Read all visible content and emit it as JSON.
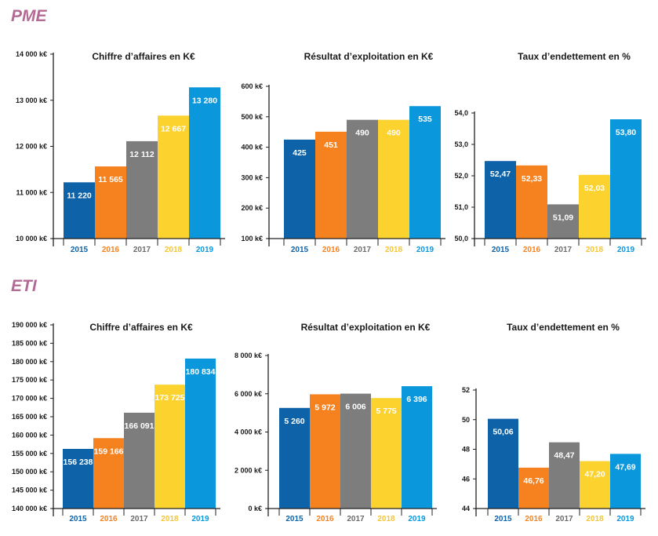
{
  "sections": [
    {
      "name": "PME",
      "color": "#b36b96"
    },
    {
      "name": "ETI",
      "color": "#b36b96"
    }
  ],
  "colors": {
    "2015": "#0e63a8",
    "2016": "#f5821f",
    "2017": "#7d7d7d",
    "2018": "#fcd22e",
    "2019": "#0a97dc"
  },
  "chart_data": [
    {
      "section": "PME",
      "type": "bar",
      "title": "Chiffre d’affaires en K€",
      "categories": [
        "2015",
        "2016",
        "2017",
        "2018",
        "2019"
      ],
      "values": [
        11220,
        11565,
        12112,
        12667,
        13280
      ],
      "value_labels": [
        "11 220",
        "11 565",
        "12 112",
        "12 667",
        "13 280"
      ],
      "ylim": [
        10000,
        14000
      ],
      "yticks": [
        10000,
        11000,
        12000,
        13000,
        14000
      ],
      "ytick_labels": [
        "10 000 k€",
        "11 000 k€",
        "12 000 k€",
        "13 000 k€",
        "14 000 k€"
      ]
    },
    {
      "section": "PME",
      "type": "bar",
      "title": "Résultat d’exploitation en K€",
      "categories": [
        "2015",
        "2016",
        "2017",
        "2018",
        "2019"
      ],
      "values": [
        425,
        451,
        490,
        490,
        535
      ],
      "value_labels": [
        "425",
        "451",
        "490",
        "490",
        "535"
      ],
      "ylim": [
        100,
        600
      ],
      "yticks": [
        100,
        200,
        300,
        400,
        500,
        600
      ],
      "ytick_labels": [
        "100 k€",
        "200 k€",
        "300 k€",
        "400 k€",
        "500 k€",
        "600 k€"
      ]
    },
    {
      "section": "PME",
      "type": "bar",
      "title": "Taux d’endettement en %",
      "categories": [
        "2015",
        "2016",
        "2017",
        "2018",
        "2019"
      ],
      "values": [
        52.47,
        52.33,
        51.09,
        52.03,
        53.8
      ],
      "value_labels": [
        "52,47",
        "52,33",
        "51,09",
        "52,03",
        "53,80"
      ],
      "ylim": [
        50,
        54
      ],
      "yticks": [
        50,
        51,
        52,
        53,
        54
      ],
      "ytick_labels": [
        "50,0",
        "51,0",
        "52,0",
        "53,0",
        "54,0"
      ]
    },
    {
      "section": "ETI",
      "type": "bar",
      "title": "Chiffre d’affaires en K€",
      "categories": [
        "2015",
        "2016",
        "2017",
        "2018",
        "2019"
      ],
      "values": [
        156238,
        159166,
        166091,
        173725,
        180834
      ],
      "value_labels": [
        "156 238",
        "159 166",
        "166 091",
        "173 725",
        "180 834"
      ],
      "ylim": [
        140000,
        190000
      ],
      "yticks": [
        140000,
        145000,
        150000,
        155000,
        160000,
        165000,
        170000,
        175000,
        180000,
        185000,
        190000
      ],
      "ytick_labels": [
        "140 000 k€",
        "145 000 k€",
        "150 000 k€",
        "155 000 k€",
        "160 000 k€",
        "165 000 k€",
        "170 000 k€",
        "175 000 k€",
        "180 000 k€",
        "185 000 k€",
        "190 000 k€"
      ]
    },
    {
      "section": "ETI",
      "type": "bar",
      "title": "Résultat d’exploitation en K€",
      "categories": [
        "2015",
        "2016",
        "2017",
        "2018",
        "2019"
      ],
      "values": [
        5260,
        5972,
        6006,
        5775,
        6396
      ],
      "value_labels": [
        "5 260",
        "5 972",
        "6 006",
        "5 775",
        "6 396"
      ],
      "ylim": [
        0,
        8000
      ],
      "yticks": [
        0,
        2000,
        4000,
        6000,
        8000
      ],
      "ytick_labels": [
        "0 k€",
        "2 000 k€",
        "4 000 k€",
        "6 000 k€",
        "8 000 k€"
      ]
    },
    {
      "section": "ETI",
      "type": "bar",
      "title": "Taux d’endettement en %",
      "categories": [
        "2015",
        "2016",
        "2017",
        "2018",
        "2019"
      ],
      "values": [
        50.06,
        46.76,
        48.47,
        47.2,
        47.69
      ],
      "value_labels": [
        "50,06",
        "46,76",
        "48,47",
        "47,20",
        "47,69"
      ],
      "ylim": [
        44,
        52
      ],
      "yticks": [
        44,
        46,
        48,
        50,
        52
      ],
      "ytick_labels": [
        "44",
        "46",
        "48",
        "50",
        "52"
      ]
    }
  ]
}
